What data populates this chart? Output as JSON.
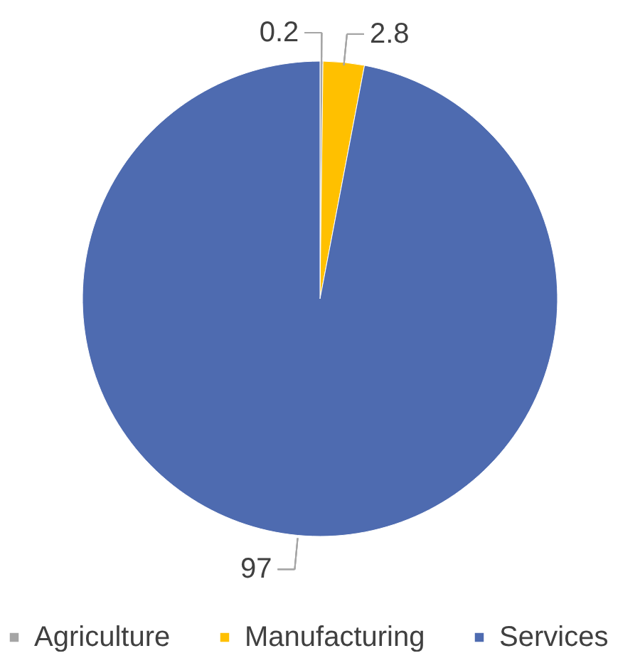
{
  "chart_data": {
    "type": "pie",
    "categories": [
      "Agriculture",
      "Manufacturing",
      "Services"
    ],
    "values": [
      0.2,
      2.8,
      97
    ],
    "colors": [
      "#a5a5a5",
      "#ffc000",
      "#4e6bb0"
    ],
    "data_labels": true,
    "legend": "bottom"
  }
}
